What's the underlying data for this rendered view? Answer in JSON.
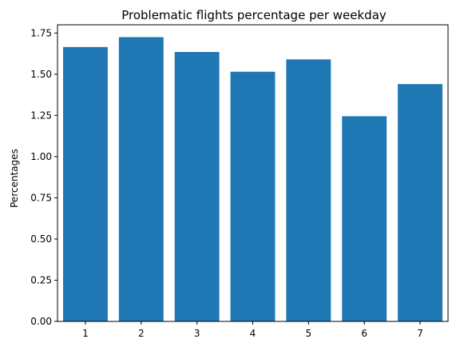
{
  "chart_data": {
    "type": "bar",
    "title": "Problematic flights percentage per weekday",
    "xlabel": "",
    "ylabel": "Percentages",
    "categories": [
      "1",
      "2",
      "3",
      "4",
      "5",
      "6",
      "7"
    ],
    "values": [
      1.665,
      1.725,
      1.635,
      1.515,
      1.59,
      1.245,
      1.44
    ],
    "ylim": [
      0,
      1.8
    ],
    "yticks": [
      "0.00",
      "0.25",
      "0.50",
      "0.75",
      "1.00",
      "1.25",
      "1.50",
      "1.75"
    ],
    "bar_color": "#1f77b4",
    "grid": false,
    "legend": false
  }
}
